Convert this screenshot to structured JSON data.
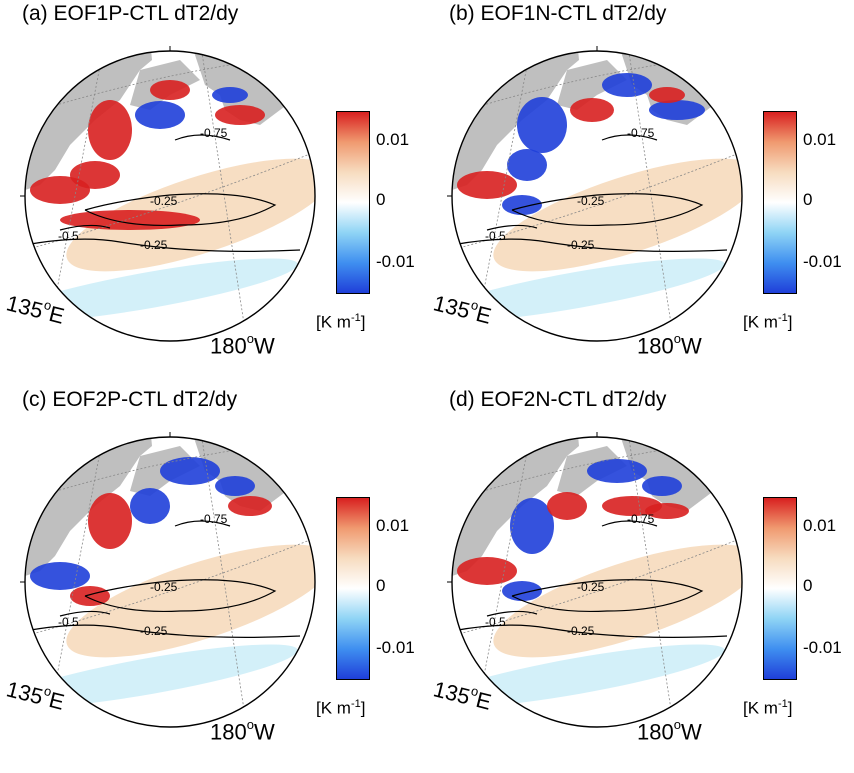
{
  "figure": {
    "panels": [
      {
        "id": "a",
        "title": "(a) EOF1P-CTL dT2/dy",
        "pattern": "1P"
      },
      {
        "id": "b",
        "title": "(b) EOF1N-CTL dT2/dy",
        "pattern": "1N"
      },
      {
        "id": "c",
        "title": "(c) EOF2P-CTL dT2/dy",
        "pattern": "2P"
      },
      {
        "id": "d",
        "title": "(d) EOF2N-CTL dT2/dy",
        "pattern": "2N"
      }
    ],
    "longitude_labels": {
      "west": "135",
      "west_unit": "E",
      "east": "180",
      "east_unit": "W",
      "degree": "o"
    },
    "contour_labels": [
      "-0.75",
      "-0.25",
      "-0.25",
      "-0.5"
    ],
    "colorbar": {
      "ticks": [
        "0.01",
        "0",
        "-0.01"
      ],
      "unit_prefix": "[K m",
      "unit_exp": "-1",
      "unit_suffix": "]",
      "colors": [
        "#1f3fd9",
        "#3f8ff0",
        "#8fd4f5",
        "#ffffff",
        "#f7dcc0",
        "#f09a70",
        "#d82020"
      ]
    },
    "land_color": "#bfbfbf"
  }
}
